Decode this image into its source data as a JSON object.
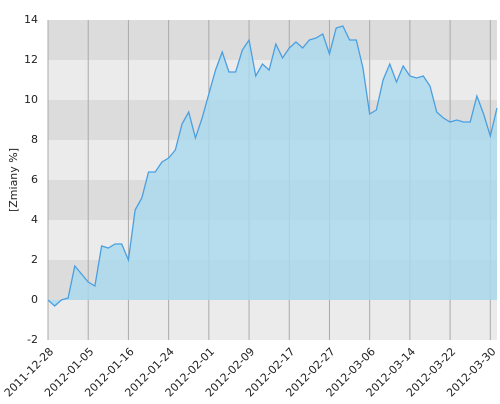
{
  "chart_data": {
    "type": "area",
    "y_label": "[Zmiany %]",
    "categories": [
      "2011-12-28",
      null,
      null,
      null,
      null,
      null,
      "2012-01-05",
      null,
      null,
      null,
      null,
      null,
      "2012-01-16",
      null,
      null,
      null,
      null,
      null,
      "2012-01-24",
      null,
      null,
      null,
      null,
      null,
      "2012-02-01",
      null,
      null,
      null,
      null,
      null,
      "2012-02-09",
      null,
      null,
      null,
      null,
      null,
      "2012-02-17",
      null,
      null,
      null,
      null,
      null,
      "2012-02-27",
      null,
      null,
      null,
      null,
      null,
      "2012-03-06",
      null,
      null,
      null,
      null,
      null,
      "2012-03-14",
      null,
      null,
      null,
      null,
      null,
      "2012-03-22",
      null,
      null,
      null,
      null,
      null,
      "2012-03-30",
      null
    ],
    "values": [
      0,
      -0.3,
      0.0,
      0.1,
      1.7,
      1.3,
      0.9,
      0.7,
      2.7,
      2.6,
      2.8,
      2.8,
      2.0,
      4.5,
      5.1,
      6.4,
      6.4,
      6.9,
      7.1,
      7.5,
      8.8,
      9.4,
      8.1,
      9.1,
      10.3,
      11.5,
      12.4,
      11.4,
      11.4,
      12.5,
      13.0,
      11.2,
      11.8,
      11.5,
      12.8,
      12.1,
      12.6,
      12.9,
      12.6,
      13.0,
      13.1,
      13.3,
      12.3,
      13.6,
      13.7,
      13.0,
      13.0,
      11.6,
      9.3,
      9.5,
      11.0,
      11.8,
      10.9,
      11.7,
      11.2,
      11.1,
      11.2,
      10.7,
      9.4,
      9.1,
      8.9,
      9.0,
      8.9,
      8.9,
      10.2,
      9.3,
      8.2,
      9.6
    ],
    "color": "#4a9fe0",
    "fill": "#a9d9ef",
    "ylim": [
      -2,
      14
    ],
    "yticks": [
      -2,
      0,
      2,
      4,
      6,
      8,
      10,
      12,
      14
    ],
    "grid": true
  }
}
